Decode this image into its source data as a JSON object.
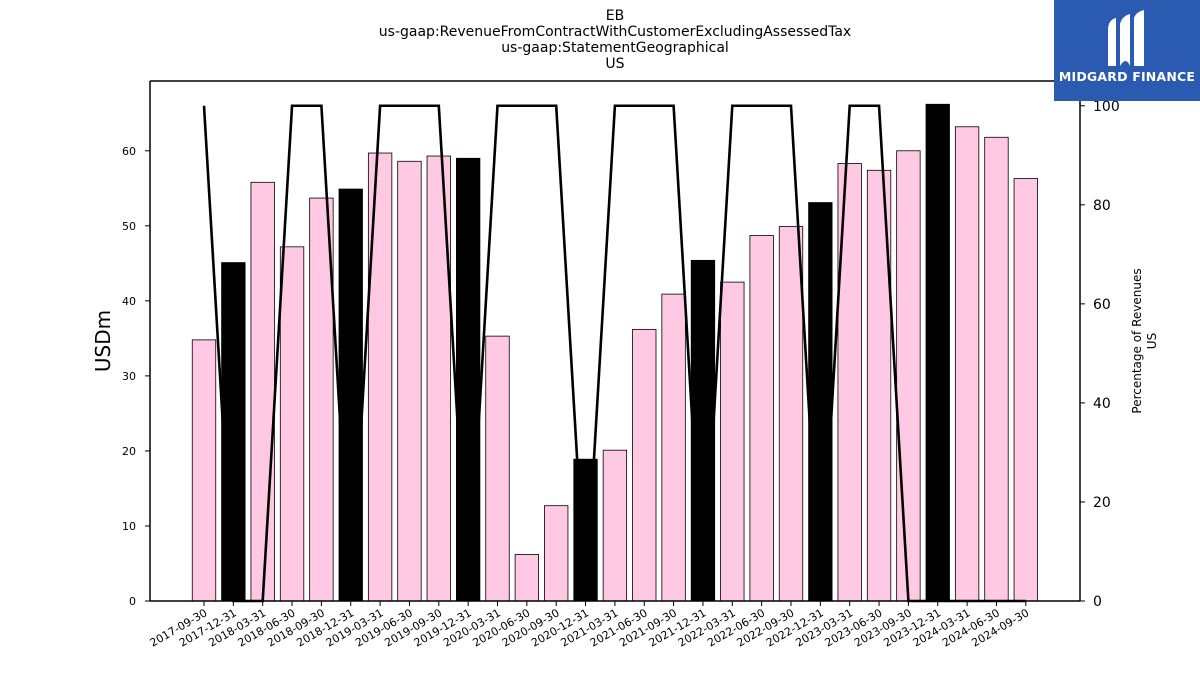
{
  "chart_data": {
    "type": "bar",
    "title_lines": [
      "EB",
      "us-gaap:RevenueFromContractWithCustomerExcludingAssessedTax",
      "us-gaap:StatementGeographical",
      "US"
    ],
    "ylabel": "USDm",
    "y2label_lines": [
      "Percentage of Revenues",
      "US"
    ],
    "ylim": [
      0,
      69.3
    ],
    "y2lim": [
      0,
      105
    ],
    "yticks": [
      0,
      10,
      20,
      30,
      40,
      50,
      60
    ],
    "y2ticks": [
      0,
      20,
      40,
      60,
      80,
      100
    ],
    "categories": [
      "2017-09-30",
      "2017-12-31",
      "2018-03-31",
      "2018-06-30",
      "2018-09-30",
      "2018-12-31",
      "2019-03-31",
      "2019-06-30",
      "2019-09-30",
      "2019-12-31",
      "2020-03-31",
      "2020-06-30",
      "2020-09-30",
      "2020-12-31",
      "2021-03-31",
      "2021-06-30",
      "2021-09-30",
      "2021-12-31",
      "2022-03-31",
      "2022-06-30",
      "2022-09-30",
      "2022-12-31",
      "2023-03-31",
      "2023-06-30",
      "2023-09-30",
      "2023-12-31",
      "2024-03-31",
      "2024-06-30",
      "2024-09-30"
    ],
    "values": [
      34.8,
      45.1,
      55.8,
      47.2,
      53.7,
      54.9,
      59.7,
      58.6,
      59.3,
      59.0,
      35.3,
      6.2,
      12.7,
      18.9,
      20.1,
      36.2,
      40.9,
      45.4,
      42.5,
      48.7,
      49.9,
      53.1,
      58.3,
      57.4,
      60.0,
      66.2,
      63.2,
      61.8,
      56.3
    ],
    "highlight": [
      false,
      true,
      false,
      false,
      false,
      true,
      false,
      false,
      false,
      true,
      false,
      false,
      false,
      true,
      false,
      false,
      false,
      true,
      false,
      false,
      false,
      true,
      false,
      false,
      false,
      true,
      false,
      false,
      false
    ],
    "percentage_series": [
      100,
      0,
      0,
      100,
      100,
      0,
      100,
      100,
      100,
      0,
      100,
      100,
      100,
      0,
      100,
      100,
      100,
      0,
      100,
      100,
      100,
      0,
      100,
      100,
      0,
      0,
      0,
      0,
      0
    ],
    "colors": {
      "bar": "#ffc8e3",
      "bar_highlight": "#000000",
      "bar_edge": "#000000",
      "line": "#000000"
    },
    "grid": false,
    "legend": "none"
  },
  "logo": {
    "text": "MIDGARD FINANCE",
    "background": "#2a5bb0",
    "icon": "midgard-logo-icon"
  }
}
